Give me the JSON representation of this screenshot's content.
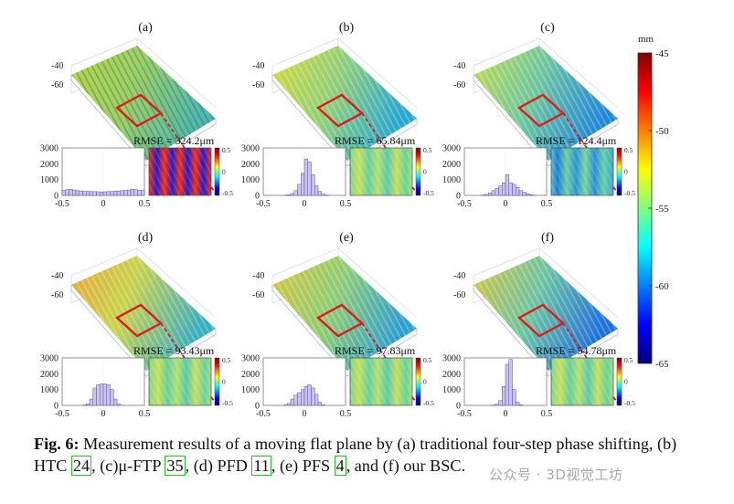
{
  "figure": {
    "colorbar": {
      "unit": "mm",
      "ticks": [
        "-45",
        "-50",
        "-55",
        "-60",
        "-65"
      ],
      "colormap": [
        "#00007f",
        "#0000ff",
        "#007fff",
        "#00ffff",
        "#7fff7f",
        "#ffff00",
        "#ff7f00",
        "#ff0000",
        "#7f0000"
      ]
    },
    "panels": [
      {
        "label": "(a)",
        "rmse": "RMSE = 324.2μm",
        "z_ticks": [
          "-40",
          "-60"
        ],
        "hist_yticks": [
          "3000",
          "2000",
          "1000",
          "0"
        ],
        "hist_xticks": [
          "-0.5",
          "0",
          "0.5"
        ],
        "inset_ticks": [
          "0.5",
          "0",
          "-0.5"
        ]
      },
      {
        "label": "(b)",
        "rmse": "RMSE = 65.84μm",
        "z_ticks": [
          "-40",
          "-60"
        ],
        "hist_yticks": [
          "3000",
          "2000",
          "1000",
          "0"
        ],
        "hist_xticks": [
          "-0.5",
          "0",
          "0.5"
        ],
        "inset_ticks": [
          "0.5",
          "0",
          "-0.5"
        ]
      },
      {
        "label": "(c)",
        "rmse": "RMSE = 124.4μm",
        "z_ticks": [
          "-40",
          "-60"
        ],
        "hist_yticks": [
          "3000",
          "2000",
          "1000",
          "0"
        ],
        "hist_xticks": [
          "-0.5",
          "0",
          "0.5"
        ],
        "inset_ticks": [
          "0.5",
          "0",
          "-0.5"
        ]
      },
      {
        "label": "(d)",
        "rmse": "RMSE = 93.43μm",
        "z_ticks": [
          "-40",
          "-60"
        ],
        "hist_yticks": [
          "3000",
          "2000",
          "1000",
          "0"
        ],
        "hist_xticks": [
          "-0.5",
          "0",
          "0.5"
        ],
        "inset_ticks": [
          "0.5",
          "0",
          "-0.5"
        ]
      },
      {
        "label": "(e)",
        "rmse": "RMSE = 97.83μm",
        "z_ticks": [
          "-40",
          "-60"
        ],
        "hist_yticks": [
          "3000",
          "2000",
          "1000",
          "0"
        ],
        "hist_xticks": [
          "-0.5",
          "0",
          "0.5"
        ],
        "inset_ticks": [
          "0.5",
          "0",
          "-0.5"
        ]
      },
      {
        "label": "(f)",
        "rmse": "RMSE = 54.78μm",
        "z_ticks": [
          "-40",
          "-60"
        ],
        "hist_yticks": [
          "3000",
          "2000",
          "1000",
          "0"
        ],
        "hist_xticks": [
          "-0.5",
          "0",
          "0.5"
        ],
        "inset_ticks": [
          "0.5",
          "0",
          "-0.5"
        ]
      }
    ],
    "histograms": [
      [
        320,
        360,
        380,
        340,
        300,
        280,
        260,
        250,
        240,
        240,
        230,
        220,
        230,
        240,
        250,
        260,
        280,
        300,
        320,
        340,
        380,
        360,
        320,
        300
      ],
      [
        0,
        0,
        0,
        0,
        0,
        0,
        10,
        40,
        120,
        300,
        700,
        1400,
        2300,
        2100,
        1300,
        600,
        250,
        80,
        20,
        0,
        0,
        0,
        0,
        0
      ],
      [
        0,
        0,
        0,
        0,
        0,
        20,
        60,
        150,
        300,
        450,
        600,
        800,
        1300,
        800,
        700,
        500,
        300,
        200,
        100,
        40,
        10,
        0,
        0,
        0
      ],
      [
        0,
        0,
        0,
        0,
        0,
        0,
        20,
        100,
        400,
        1100,
        1300,
        1350,
        1350,
        1300,
        1000,
        400,
        80,
        10,
        0,
        0,
        0,
        0,
        0,
        0
      ],
      [
        0,
        0,
        0,
        0,
        0,
        0,
        30,
        120,
        400,
        650,
        800,
        1000,
        1200,
        1300,
        1100,
        700,
        200,
        30,
        0,
        0,
        0,
        0,
        0,
        0
      ],
      [
        0,
        0,
        0,
        0,
        0,
        0,
        0,
        0,
        20,
        80,
        300,
        1200,
        2600,
        2900,
        1000,
        200,
        40,
        0,
        0,
        0,
        0,
        0,
        0,
        0
      ]
    ],
    "caption": {
      "label": "Fig. 6:",
      "parts": [
        {
          "text": " Measurement results of a moving flat plane by (a) traditional four-step phase shifting, (b) HTC "
        },
        {
          "cite": "24"
        },
        {
          "text": ", (c)μ-FTP "
        },
        {
          "cite": "35"
        },
        {
          "text": ", (d) PFD "
        },
        {
          "cite": "11"
        },
        {
          "text": ", (e) PFS "
        },
        {
          "cite": "4"
        },
        {
          "text": ", and (f) our BSC."
        }
      ]
    },
    "watermark": "公众号 · 3D视觉工坊"
  }
}
